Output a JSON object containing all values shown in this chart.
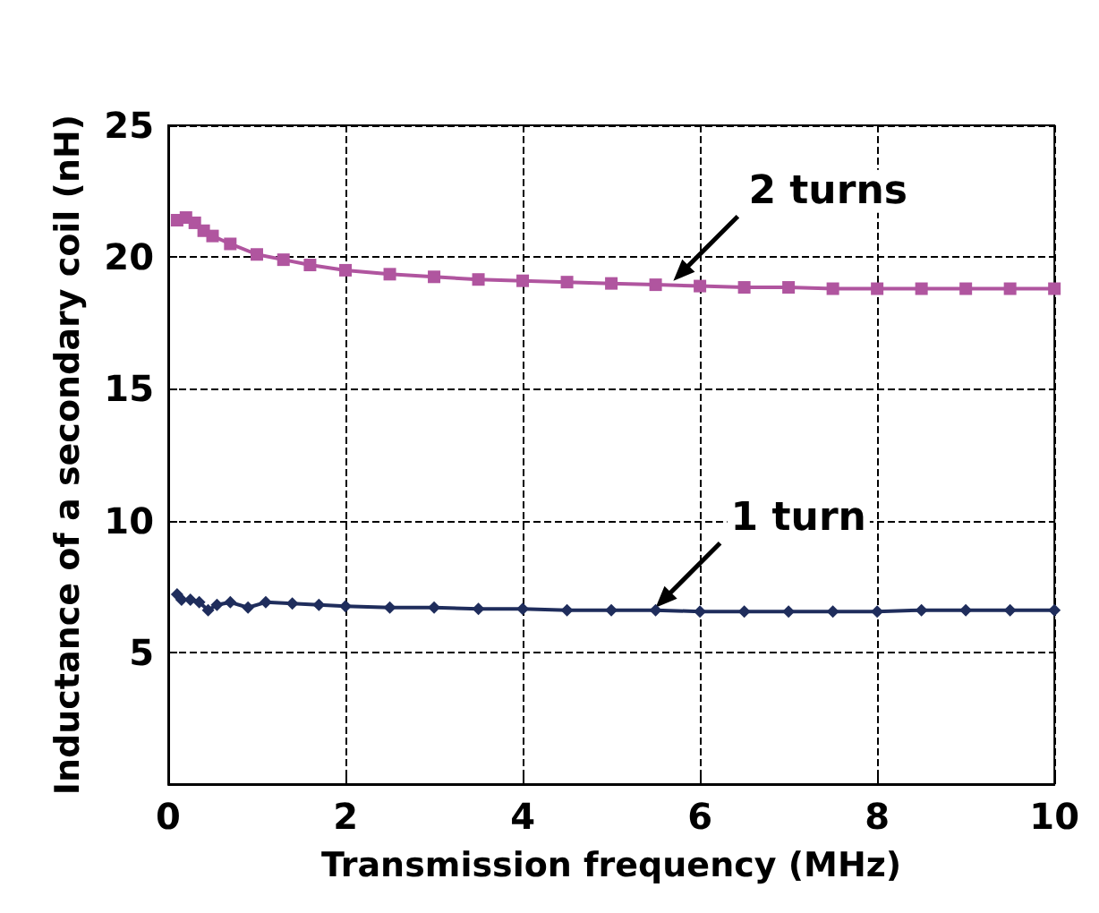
{
  "chart_data": {
    "type": "line",
    "xlabel": "Transmission frequency (MHz)",
    "ylabel": "Inductance of a secondary coil (nH)",
    "xlim": [
      0,
      10
    ],
    "xticks": [
      0,
      2,
      4,
      6,
      8,
      10
    ],
    "ylim": [
      0,
      25
    ],
    "yticks": [
      {
        "value": 0,
        "label": null
      },
      5,
      10,
      15,
      20,
      25
    ],
    "grid": true,
    "line_style": "solid",
    "series": [
      {
        "color": "#b0559f",
        "marker": "square",
        "x": [
          0.1,
          0.2,
          0.3,
          0.4,
          0.5,
          0.7,
          1,
          1.3,
          1.6,
          2,
          2.5,
          3,
          3.5,
          4,
          4.5,
          5,
          5.5,
          6,
          6.5,
          7,
          7.5,
          8,
          8.5,
          9,
          9.5,
          10
        ],
        "values": [
          21.4,
          21.5,
          21.3,
          21.0,
          20.8,
          20.5,
          20.1,
          19.9,
          19.7,
          19.5,
          19.35,
          19.25,
          19.15,
          19.1,
          19.05,
          19.0,
          18.95,
          18.9,
          18.85,
          18.85,
          18.8,
          18.8,
          18.8,
          18.8,
          18.8,
          18.8
        ]
      },
      {
        "color": "#1f2d5c",
        "marker": "diamond",
        "x": [
          0.1,
          0.15,
          0.25,
          0.35,
          0.45,
          0.55,
          0.7,
          0.9,
          1.1,
          1.4,
          1.7,
          2,
          2.5,
          3,
          3.5,
          4,
          4.5,
          5,
          5.5,
          6,
          6.5,
          7,
          7.5,
          8,
          8.5,
          9,
          9.5,
          10
        ],
        "values": [
          7.2,
          7.0,
          7.0,
          6.9,
          6.6,
          6.8,
          6.9,
          6.7,
          6.9,
          6.85,
          6.8,
          6.75,
          6.7,
          6.7,
          6.65,
          6.65,
          6.6,
          6.6,
          6.6,
          6.55,
          6.55,
          6.55,
          6.55,
          6.55,
          6.6,
          6.6,
          6.6,
          6.6
        ]
      }
    ],
    "annotations": [
      {
        "text": "2 turns",
        "x": 5.7,
        "y": 19.1
      },
      {
        "text": "1 turn",
        "x": 5.5,
        "y": 6.7
      }
    ]
  }
}
